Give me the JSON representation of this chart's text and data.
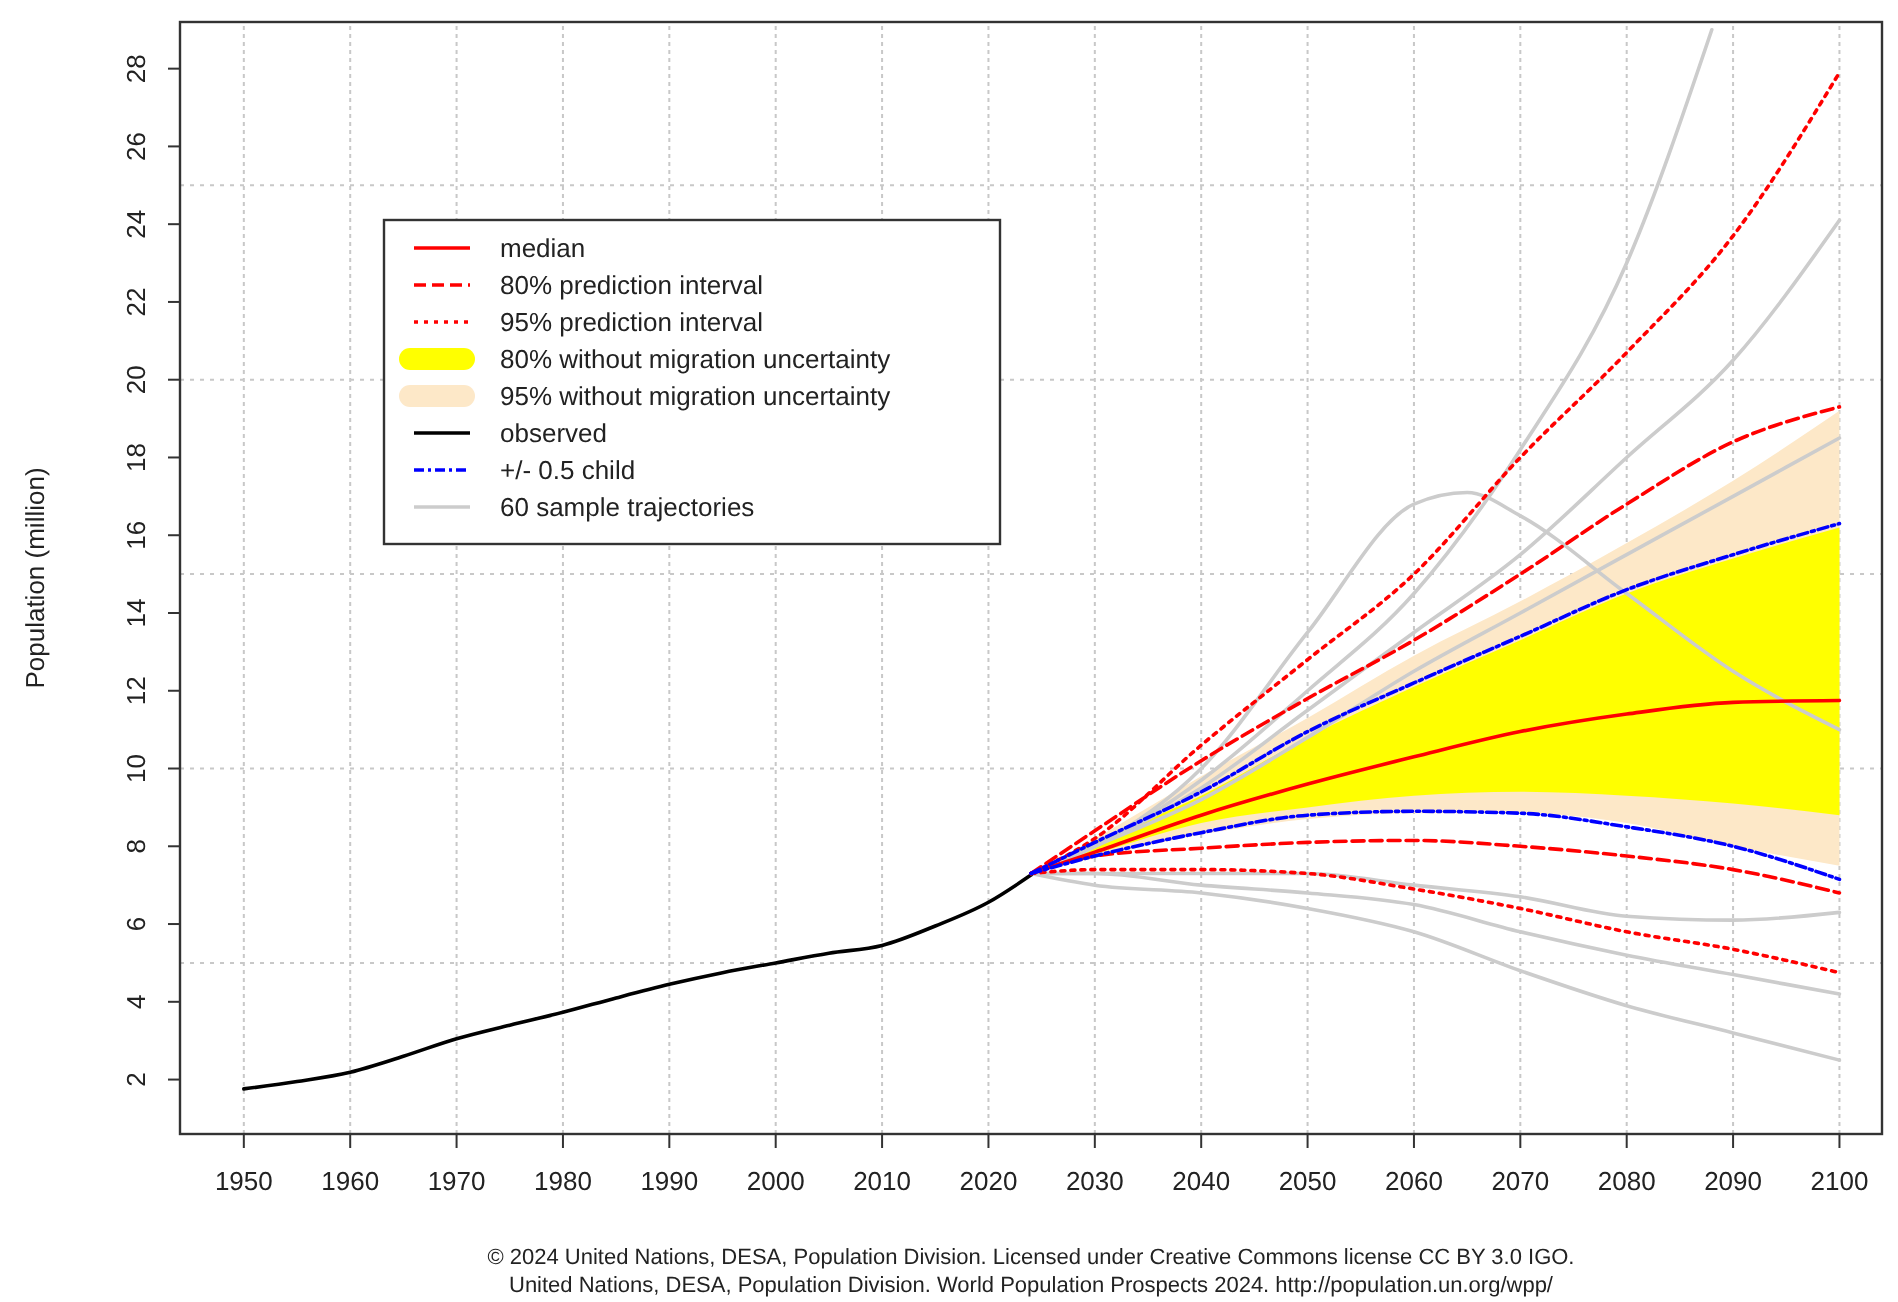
{
  "chart_data": {
    "type": "line",
    "ylabel": "Population (million)",
    "xlim": [
      1944,
      2104
    ],
    "ylim": [
      0.6,
      29.2
    ],
    "xticks": [
      1950,
      1960,
      1970,
      1980,
      1990,
      2000,
      2010,
      2020,
      2030,
      2040,
      2050,
      2060,
      2070,
      2080,
      2090,
      2100
    ],
    "yticks": [
      2,
      4,
      6,
      8,
      10,
      12,
      14,
      16,
      18,
      20,
      22,
      24,
      26,
      28
    ],
    "grid": "x",
    "legend": "top left",
    "ref_lines": [
      {
        "axis": "y",
        "value": 5,
        "color": "#c8c8c8",
        "line_style": "dotted"
      },
      {
        "axis": "y",
        "value": 10,
        "color": "#c8c8c8",
        "line_style": "dotted"
      },
      {
        "axis": "y",
        "value": 15,
        "color": "#c8c8c8",
        "line_style": "dotted"
      },
      {
        "axis": "y",
        "value": 20,
        "color": "#c8c8c8",
        "line_style": "dotted"
      },
      {
        "axis": "y",
        "value": 25,
        "color": "#c8c8c8",
        "line_style": "dotted"
      }
    ],
    "series": [
      {
        "name": "median",
        "color": "#ff0000",
        "line_style": "solid",
        "x": [
          2024,
          2030,
          2040,
          2050,
          2060,
          2070,
          2080,
          2090,
          2100
        ],
        "values": [
          7.3,
          7.85,
          8.8,
          9.6,
          10.3,
          10.95,
          11.4,
          11.7,
          11.75
        ]
      },
      {
        "name": "80% prediction interval",
        "color": "#ff0000",
        "line_style": "dashed",
        "x": [
          2024,
          2030,
          2040,
          2050,
          2060,
          2070,
          2080,
          2090,
          2100
        ],
        "values": [
          7.3,
          8.4,
          10.2,
          11.8,
          13.3,
          15.0,
          16.8,
          18.4,
          19.3
        ]
      },
      {
        "name": "95% prediction interval",
        "color": "#ff0000",
        "line_style": "dotted",
        "x": [
          2024,
          2030,
          2040,
          2050,
          2060,
          2070,
          2080,
          2090,
          2100
        ],
        "values": [
          7.3,
          8.2,
          10.6,
          12.8,
          15.0,
          18.0,
          20.7,
          23.7,
          27.9
        ]
      },
      {
        "name": "80% without migration uncertainty",
        "color": "#ffff00",
        "x": [
          2024,
          2030,
          2040,
          2050,
          2060,
          2070,
          2080,
          2090,
          2100
        ],
        "lower": [
          7.3,
          7.8,
          8.6,
          9.0,
          9.3,
          9.4,
          9.3,
          9.1,
          8.8
        ],
        "upper": [
          7.3,
          8.1,
          9.3,
          10.8,
          12.1,
          13.3,
          14.5,
          15.4,
          16.2
        ],
        "values": [
          null,
          null,
          null,
          null,
          null,
          null,
          null,
          null,
          null
        ]
      },
      {
        "name": "95% without migration uncertainty",
        "color": "#fde8c8",
        "x": [
          2024,
          2030,
          2040,
          2050,
          2060,
          2070,
          2080,
          2090,
          2100
        ],
        "lower": [
          7.3,
          7.7,
          8.3,
          8.7,
          8.85,
          8.85,
          8.6,
          8.0,
          7.5
        ],
        "upper": [
          7.3,
          8.2,
          9.8,
          11.3,
          12.9,
          14.3,
          15.8,
          17.4,
          19.2
        ],
        "values": [
          null,
          null,
          null,
          null,
          null,
          null,
          null,
          null,
          null
        ]
      },
      {
        "name": "observed",
        "color": "#000000",
        "line_style": "solid",
        "x": [
          1950,
          1955,
          1960,
          1965,
          1970,
          1975,
          1980,
          1985,
          1990,
          1995,
          2000,
          2005,
          2010,
          2015,
          2020,
          2024
        ],
        "values": [
          1.76,
          1.95,
          2.19,
          2.6,
          3.05,
          3.4,
          3.73,
          4.1,
          4.45,
          4.75,
          5.0,
          5.25,
          5.45,
          5.95,
          6.56,
          7.26
        ]
      },
      {
        "name": "+/- 0.5 child",
        "color": "#0000ff",
        "line_style": "dashdot",
        "x": [
          2024,
          2030,
          2040,
          2050,
          2060,
          2070,
          2080,
          2090,
          2100
        ],
        "values": [
          7.3,
          8.1,
          9.4,
          10.95,
          12.2,
          13.4,
          14.6,
          15.5,
          16.3
        ]
      },
      {
        "name": "60 sample trajectories",
        "color": "#cccccc",
        "line_style": "solid",
        "x": [
          2024,
          2030,
          2040,
          2050,
          2060,
          2070,
          2080,
          2088
        ],
        "values": [
          7.3,
          8.0,
          9.7,
          12.0,
          14.5,
          18.2,
          23.0,
          29.0
        ]
      },
      {
        "color": "#ff0000",
        "line_style": "dashed",
        "x": [
          2024,
          2030,
          2040,
          2050,
          2060,
          2070,
          2080,
          2090,
          2100
        ],
        "values": [
          7.3,
          7.75,
          7.95,
          8.1,
          8.15,
          8.0,
          7.75,
          7.4,
          6.8
        ]
      },
      {
        "color": "#ff0000",
        "line_style": "dotted",
        "x": [
          2024,
          2030,
          2040,
          2050,
          2060,
          2070,
          2080,
          2090,
          2100
        ],
        "values": [
          7.3,
          7.4,
          7.4,
          7.3,
          6.9,
          6.4,
          5.8,
          5.35,
          4.75
        ]
      },
      {
        "color": "#0000ff",
        "line_style": "dashdot",
        "x": [
          2024,
          2030,
          2040,
          2050,
          2060,
          2070,
          2080,
          2090,
          2100
        ],
        "values": [
          7.3,
          7.75,
          8.35,
          8.8,
          8.9,
          8.85,
          8.5,
          8.0,
          7.15
        ]
      },
      {
        "color": "#cccccc",
        "line_style": "solid",
        "x": [
          2024,
          2030,
          2040,
          2050,
          2060,
          2070,
          2080,
          2090,
          2100
        ],
        "values": [
          7.3,
          8.0,
          9.5,
          11.5,
          13.5,
          15.5,
          18.0,
          20.5,
          24.1
        ]
      },
      {
        "color": "#cccccc",
        "line_style": "solid",
        "x": [
          2024,
          2030,
          2040,
          2050,
          2060,
          2065,
          2070,
          2080,
          2090,
          2100
        ],
        "values": [
          7.3,
          8.0,
          10.0,
          13.5,
          16.8,
          17.1,
          16.5,
          14.5,
          12.5,
          11.0
        ]
      },
      {
        "color": "#cccccc",
        "line_style": "solid",
        "x": [
          2024,
          2030,
          2040,
          2050,
          2060,
          2070,
          2080,
          2090,
          2100
        ],
        "values": [
          7.3,
          8.0,
          9.2,
          10.8,
          12.5,
          14.0,
          15.5,
          17.0,
          18.5
        ]
      },
      {
        "color": "#cccccc",
        "line_style": "solid",
        "x": [
          2024,
          2030,
          2040,
          2050,
          2060,
          2070,
          2080,
          2090,
          2100
        ],
        "values": [
          7.3,
          7.3,
          7.3,
          7.3,
          7.0,
          6.7,
          6.2,
          6.1,
          6.3
        ]
      },
      {
        "color": "#cccccc",
        "line_style": "solid",
        "x": [
          2024,
          2030,
          2040,
          2050,
          2060,
          2070,
          2080,
          2090,
          2100
        ],
        "values": [
          7.3,
          7.3,
          7.0,
          6.8,
          6.5,
          5.8,
          5.2,
          4.7,
          4.2
        ]
      },
      {
        "color": "#cccccc",
        "line_style": "solid",
        "x": [
          2024,
          2030,
          2040,
          2050,
          2060,
          2070,
          2080,
          2090,
          2100
        ],
        "values": [
          7.3,
          7.0,
          6.8,
          6.4,
          5.8,
          4.8,
          3.9,
          3.2,
          2.5
        ]
      }
    ],
    "annotations": [
      "© 2024 United Nations, DESA, Population Division. Licensed under Creative Commons license CC BY 3.0 IGO.",
      "United Nations, DESA, Population Division. World Population Prospects 2024. http://population.un.org/wpp/"
    ]
  }
}
